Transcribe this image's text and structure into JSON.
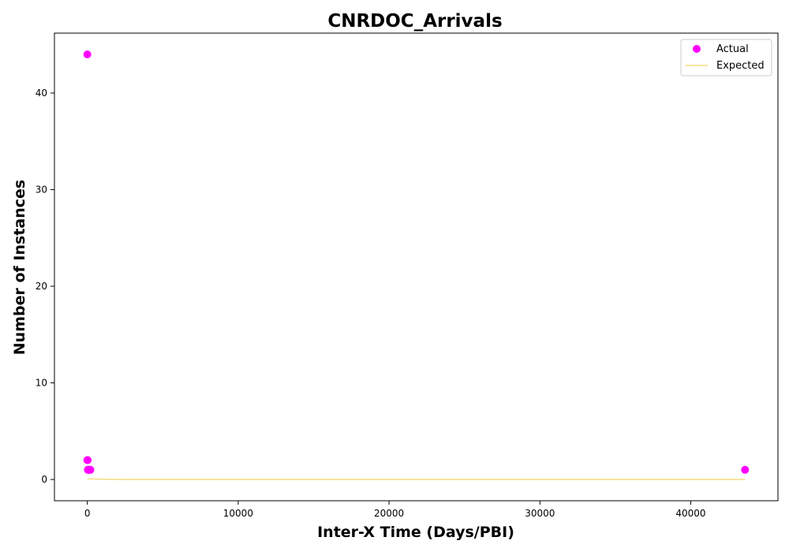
{
  "chart_data": {
    "type": "scatter",
    "title": "CNRDOC_Arrivals",
    "xlabel": "Inter-X Time (Days/PBI)",
    "ylabel": "Number of Instances",
    "xlim": [
      -2180,
      45780
    ],
    "ylim": [
      -2.2,
      46.2
    ],
    "xticks": [
      0,
      10000,
      20000,
      30000,
      40000
    ],
    "yticks": [
      0,
      10,
      20,
      30,
      40
    ],
    "grid": false,
    "legend_position": "top-right",
    "series": [
      {
        "name": "Actual",
        "kind": "scatter",
        "color": "#ff00ff",
        "x": [
          0,
          0,
          20,
          40,
          60,
          100,
          150,
          200,
          43600
        ],
        "y": [
          44,
          2,
          2,
          1,
          1,
          1,
          1,
          1,
          1
        ]
      },
      {
        "name": "Expected",
        "kind": "line",
        "color": "#f5dc82",
        "x": [
          0,
          500,
          1000,
          1500,
          2000,
          3000,
          5000,
          10000,
          20000,
          30000,
          43600
        ],
        "y": [
          0.08,
          0.05,
          0.03,
          0.015,
          0.008,
          0.003,
          0.001,
          0,
          0,
          0,
          0
        ]
      }
    ]
  }
}
